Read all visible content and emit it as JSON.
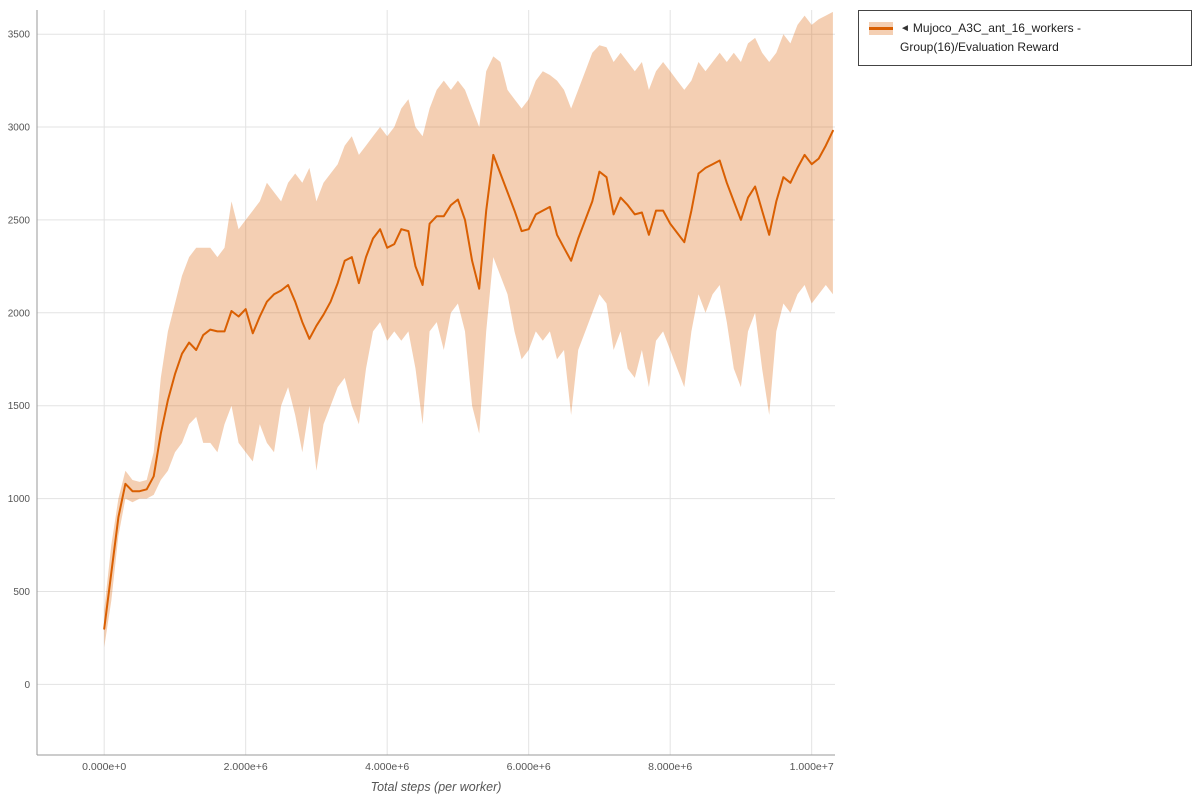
{
  "legend": {
    "collapse_icon": "◄",
    "label": "Mujoco_A3C_ant_16_workers - Group(16)/Evaluation Reward",
    "series_color": "#d95f02",
    "band_color": "rgba(217,95,2,0.30)"
  },
  "axis_style": {
    "grid_color": "#e3e3e3",
    "axis_line_color": "#999999",
    "tick_label_color": "#555555"
  },
  "chart_data": {
    "type": "line",
    "title": "",
    "xlabel": "Total steps (per worker)",
    "ylabel": "",
    "grid": true,
    "legend_position": "top-right",
    "x_unit": "environment steps (x_millions = steps / 1e6)",
    "x_tick_labels": [
      "0.000e+0",
      "2.000e+6",
      "4.000e+6",
      "6.000e+6",
      "8.000e+6",
      "1.000e+7"
    ],
    "x_tick_values_millions": [
      0,
      2,
      4,
      6,
      8,
      10
    ],
    "y_tick_labels": [
      "0",
      "500",
      "1000",
      "1500",
      "2000",
      "2500",
      "3000",
      "3500"
    ],
    "y_tick_values": [
      0,
      500,
      1000,
      1500,
      2000,
      2500,
      3000,
      3500
    ],
    "xlim_millions": [
      -0.95,
      10.33
    ],
    "ylim": [
      -380,
      3630
    ],
    "series": [
      {
        "name": "Mujoco_A3C_ant_16_workers - Group(16)/Evaluation Reward",
        "color": "#d95f02",
        "band": "min-max",
        "x_millions": [
          0,
          0.1,
          0.2,
          0.3,
          0.4,
          0.5,
          0.6,
          0.7,
          0.8,
          0.9,
          1,
          1.1,
          1.2,
          1.3,
          1.4,
          1.5,
          1.6,
          1.7,
          1.8,
          1.9,
          2,
          2.1,
          2.2,
          2.3,
          2.4,
          2.5,
          2.6,
          2.7,
          2.8,
          2.9,
          3,
          3.1,
          3.2,
          3.3,
          3.4,
          3.5,
          3.6,
          3.7,
          3.8,
          3.9,
          4,
          4.1,
          4.2,
          4.3,
          4.4,
          4.5,
          4.6,
          4.7,
          4.8,
          4.9,
          5,
          5.1,
          5.2,
          5.3,
          5.4,
          5.5,
          5.6,
          5.7,
          5.8,
          5.9,
          6,
          6.1,
          6.2,
          6.3,
          6.4,
          6.5,
          6.6,
          6.7,
          6.8,
          6.9,
          7,
          7.1,
          7.2,
          7.3,
          7.4,
          7.5,
          7.6,
          7.7,
          7.8,
          7.9,
          8,
          8.1,
          8.2,
          8.3,
          8.4,
          8.5,
          8.6,
          8.7,
          8.8,
          8.9,
          9,
          9.1,
          9.2,
          9.3,
          9.4,
          9.5,
          9.6,
          9.7,
          9.8,
          9.9,
          10,
          10.1,
          10.2,
          10.3
        ],
        "mean": [
          300,
          600,
          900,
          1080,
          1040,
          1040,
          1050,
          1120,
          1350,
          1530,
          1670,
          1780,
          1840,
          1800,
          1880,
          1910,
          1900,
          1900,
          2010,
          1980,
          2020,
          1890,
          1980,
          2060,
          2100,
          2120,
          2150,
          2060,
          1950,
          1860,
          1930,
          1990,
          2060,
          2160,
          2280,
          2300,
          2160,
          2300,
          2400,
          2450,
          2350,
          2370,
          2450,
          2440,
          2250,
          2150,
          2480,
          2520,
          2520,
          2580,
          2610,
          2500,
          2280,
          2130,
          2550,
          2850,
          2750,
          2650,
          2550,
          2440,
          2450,
          2530,
          2550,
          2570,
          2420,
          2350,
          2280,
          2400,
          2500,
          2600,
          2760,
          2730,
          2530,
          2620,
          2580,
          2530,
          2540,
          2420,
          2550,
          2550,
          2480,
          2430,
          2380,
          2550,
          2750,
          2780,
          2800,
          2820,
          2700,
          2600,
          2500,
          2620,
          2680,
          2550,
          2420,
          2600,
          2730,
          2700,
          2780,
          2850,
          2800,
          2830,
          2900,
          2980
        ],
        "upper": [
          400,
          750,
          1000,
          1150,
          1100,
          1090,
          1100,
          1250,
          1650,
          1900,
          2050,
          2200,
          2300,
          2350,
          2350,
          2350,
          2300,
          2350,
          2600,
          2450,
          2500,
          2550,
          2600,
          2700,
          2650,
          2600,
          2700,
          2750,
          2700,
          2780,
          2600,
          2700,
          2750,
          2800,
          2900,
          2950,
          2850,
          2900,
          2950,
          3000,
          2950,
          3000,
          3100,
          3150,
          3000,
          2950,
          3100,
          3200,
          3250,
          3200,
          3250,
          3200,
          3100,
          3000,
          3300,
          3380,
          3350,
          3200,
          3150,
          3100,
          3150,
          3250,
          3300,
          3280,
          3250,
          3200,
          3100,
          3200,
          3300,
          3400,
          3440,
          3430,
          3350,
          3400,
          3350,
          3300,
          3350,
          3200,
          3300,
          3350,
          3300,
          3250,
          3200,
          3250,
          3350,
          3300,
          3350,
          3400,
          3350,
          3400,
          3350,
          3450,
          3480,
          3400,
          3350,
          3400,
          3500,
          3450,
          3550,
          3600,
          3550,
          3580,
          3600,
          3620
        ],
        "lower": [
          200,
          450,
          800,
          1000,
          980,
          1000,
          1000,
          1020,
          1100,
          1150,
          1250,
          1300,
          1400,
          1440,
          1300,
          1300,
          1250,
          1400,
          1500,
          1300,
          1250,
          1200,
          1400,
          1300,
          1250,
          1500,
          1600,
          1450,
          1250,
          1500,
          1150,
          1400,
          1500,
          1600,
          1650,
          1500,
          1400,
          1700,
          1900,
          1950,
          1850,
          1900,
          1850,
          1900,
          1700,
          1400,
          1900,
          1950,
          1800,
          2000,
          2050,
          1900,
          1500,
          1350,
          1900,
          2300,
          2200,
          2100,
          1900,
          1750,
          1800,
          1900,
          1850,
          1900,
          1750,
          1800,
          1450,
          1800,
          1900,
          2000,
          2100,
          2050,
          1800,
          1900,
          1700,
          1650,
          1800,
          1600,
          1850,
          1900,
          1800,
          1700,
          1600,
          1900,
          2100,
          2000,
          2100,
          2150,
          1950,
          1700,
          1600,
          1900,
          2000,
          1700,
          1450,
          1900,
          2050,
          2000,
          2100,
          2150,
          2050,
          2100,
          2150,
          2100
        ]
      }
    ]
  }
}
